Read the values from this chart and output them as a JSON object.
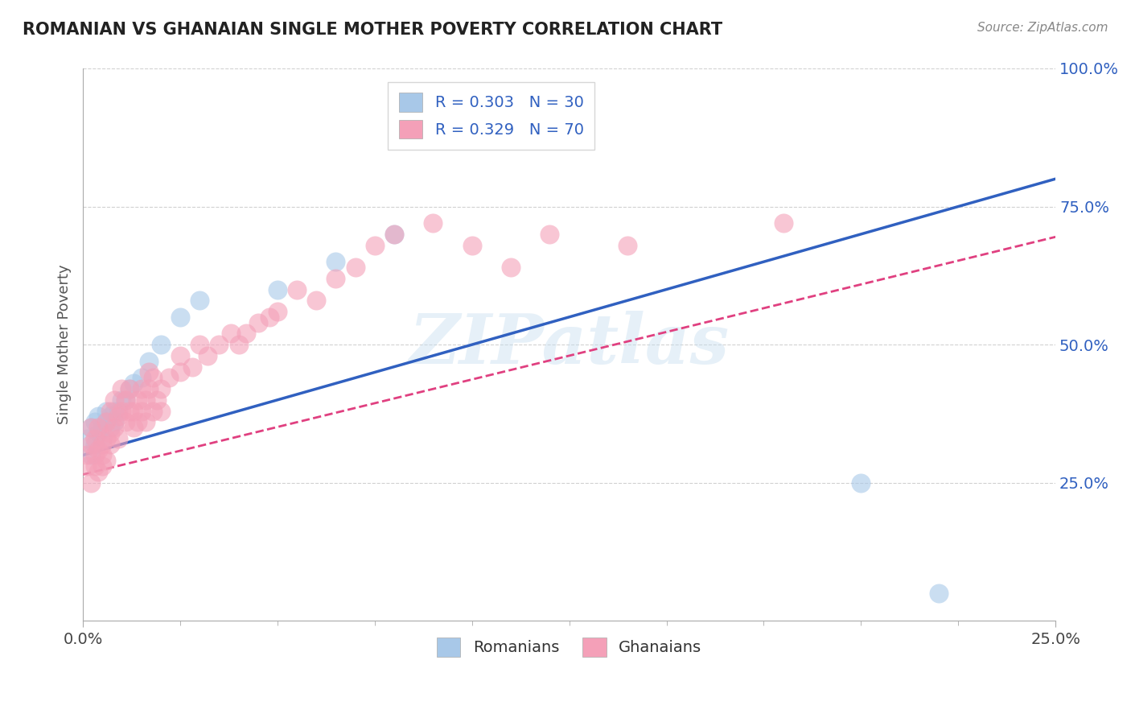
{
  "title": "ROMANIAN VS GHANAIAN SINGLE MOTHER POVERTY CORRELATION CHART",
  "source_text": "Source: ZipAtlas.com",
  "ylabel": "Single Mother Poverty",
  "watermark": "ZIPatlas",
  "legend_romanian": "R = 0.303   N = 30",
  "legend_ghanaian": "R = 0.329   N = 70",
  "romanian_color": "#a8c8e8",
  "ghanaian_color": "#f4a0b8",
  "regression_romanian_color": "#3060c0",
  "regression_ghanaian_color": "#e04080",
  "xlim": [
    0.0,
    0.25
  ],
  "ylim": [
    0.0,
    1.0
  ],
  "xtick_positions": [
    0.0,
    0.25
  ],
  "xtick_labels": [
    "0.0%",
    "25.0%"
  ],
  "ytick_positions": [
    0.25,
    0.5,
    0.75,
    1.0
  ],
  "ytick_labels": [
    "25.0%",
    "50.0%",
    "75.0%",
    "100.0%"
  ],
  "background_color": "#ffffff",
  "grid_color": "#cccccc",
  "romanian_x": [
    0.001,
    0.002,
    0.002,
    0.003,
    0.003,
    0.004,
    0.004,
    0.005,
    0.005,
    0.006,
    0.006,
    0.007,
    0.007,
    0.008,
    0.008,
    0.009,
    0.01,
    0.011,
    0.012,
    0.013,
    0.015,
    0.017,
    0.02,
    0.025,
    0.03,
    0.05,
    0.065,
    0.08,
    0.2,
    0.22
  ],
  "romanian_y": [
    0.33,
    0.35,
    0.3,
    0.36,
    0.32,
    0.34,
    0.37,
    0.35,
    0.33,
    0.36,
    0.38,
    0.37,
    0.35,
    0.38,
    0.36,
    0.38,
    0.4,
    0.4,
    0.42,
    0.43,
    0.44,
    0.47,
    0.5,
    0.55,
    0.58,
    0.6,
    0.65,
    0.7,
    0.25,
    0.05
  ],
  "ghanaian_x": [
    0.001,
    0.001,
    0.002,
    0.002,
    0.002,
    0.003,
    0.003,
    0.003,
    0.004,
    0.004,
    0.004,
    0.005,
    0.005,
    0.005,
    0.006,
    0.006,
    0.006,
    0.007,
    0.007,
    0.007,
    0.008,
    0.008,
    0.009,
    0.009,
    0.01,
    0.01,
    0.011,
    0.011,
    0.012,
    0.012,
    0.013,
    0.013,
    0.014,
    0.014,
    0.015,
    0.015,
    0.016,
    0.016,
    0.017,
    0.017,
    0.018,
    0.018,
    0.019,
    0.02,
    0.02,
    0.022,
    0.025,
    0.025,
    0.028,
    0.03,
    0.032,
    0.035,
    0.038,
    0.04,
    0.042,
    0.045,
    0.048,
    0.05,
    0.055,
    0.06,
    0.065,
    0.07,
    0.075,
    0.08,
    0.09,
    0.1,
    0.11,
    0.12,
    0.14,
    0.18
  ],
  "ghanaian_y": [
    0.3,
    0.28,
    0.32,
    0.25,
    0.35,
    0.3,
    0.28,
    0.33,
    0.31,
    0.27,
    0.35,
    0.32,
    0.3,
    0.28,
    0.33,
    0.36,
    0.29,
    0.34,
    0.38,
    0.32,
    0.35,
    0.4,
    0.37,
    0.33,
    0.38,
    0.42,
    0.36,
    0.4,
    0.38,
    0.42,
    0.35,
    0.38,
    0.4,
    0.36,
    0.38,
    0.42,
    0.4,
    0.36,
    0.42,
    0.45,
    0.38,
    0.44,
    0.4,
    0.42,
    0.38,
    0.44,
    0.45,
    0.48,
    0.46,
    0.5,
    0.48,
    0.5,
    0.52,
    0.5,
    0.52,
    0.54,
    0.55,
    0.56,
    0.6,
    0.58,
    0.62,
    0.64,
    0.68,
    0.7,
    0.72,
    0.68,
    0.64,
    0.7,
    0.68,
    0.72
  ]
}
